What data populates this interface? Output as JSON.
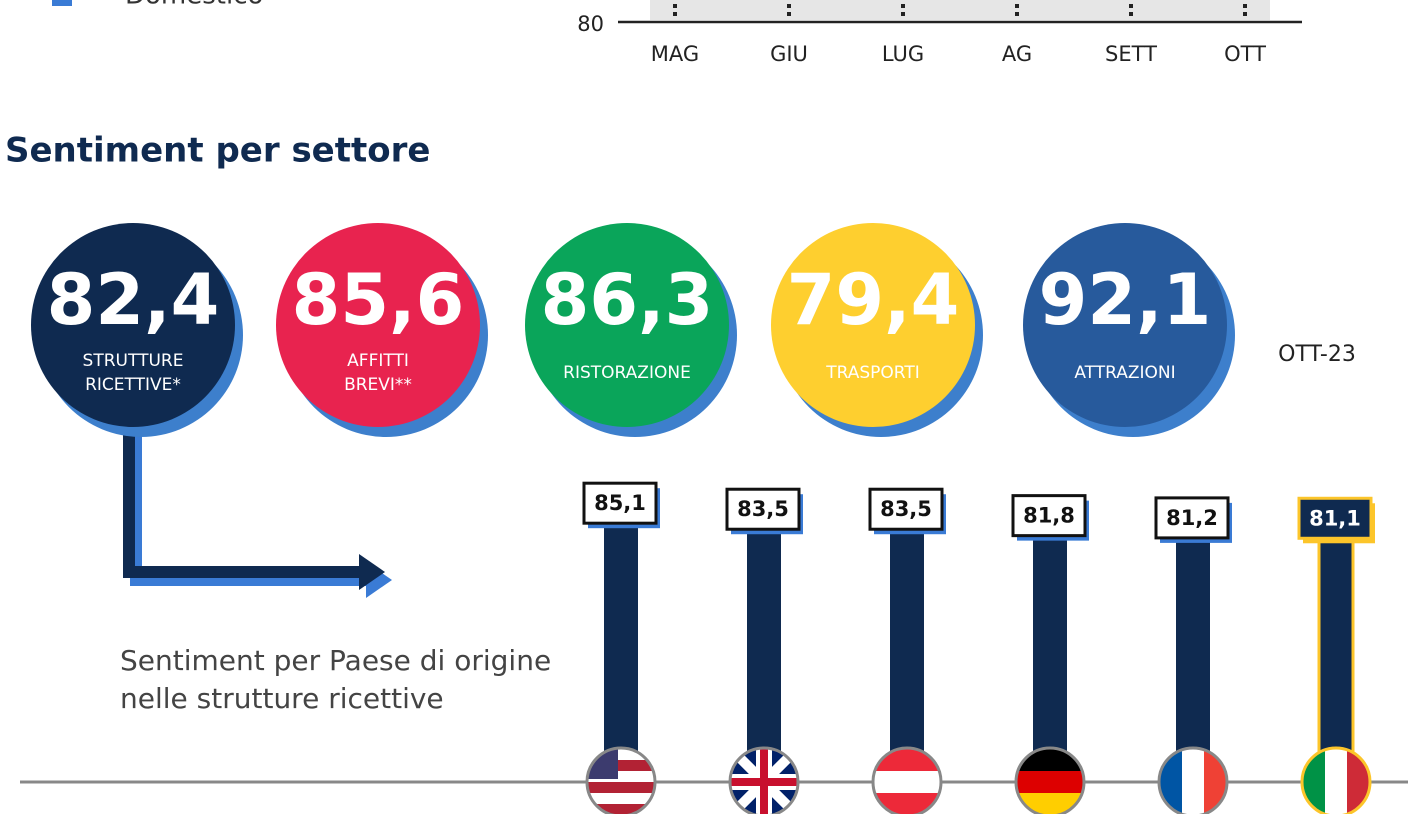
{
  "legend": {
    "label": "Domestico",
    "color": "#3a7bd5"
  },
  "chart_data": [
    {
      "type": "axis",
      "categories": [
        "MAG",
        "GIU",
        "LUG",
        "AG",
        "SETT",
        "OTT"
      ],
      "yticks": [
        80
      ]
    },
    {
      "type": "bar",
      "categories": [
        null,
        null,
        null,
        null,
        null,
        null
      ],
      "values": [
        85.1,
        83.5,
        83.5,
        81.8,
        81.2,
        81.1
      ],
      "value_labels": [
        "85,1",
        "83,5",
        "83,5",
        "81,8",
        "81,2",
        "81,1"
      ],
      "color": "#0f2a50",
      "highlight_color": "#fcc52a",
      "ylim": [
        17,
        100
      ]
    }
  ],
  "section_title": "Sentiment per settore",
  "sectors": [
    {
      "value": "82,4",
      "label": [
        "STRUTTURE",
        "RICETTIVE*"
      ],
      "color": "#0f2a50"
    },
    {
      "value": "85,6",
      "label": [
        "AFFITTI",
        "BREVI**"
      ],
      "color": "#e8234f"
    },
    {
      "value": "86,3",
      "label": [
        "RISTORAZIONE"
      ],
      "color": "#0aa55a"
    },
    {
      "value": "79,4",
      "label": [
        "TRASPORTI"
      ],
      "color": "#fecf2f"
    },
    {
      "value": "92,1",
      "label": [
        "ATTRAZIONI"
      ],
      "color": "#275a9c"
    }
  ],
  "period": "OTT-23",
  "note": [
    "Sentiment per Paese di origine",
    "nelle strutture ricettive"
  ]
}
